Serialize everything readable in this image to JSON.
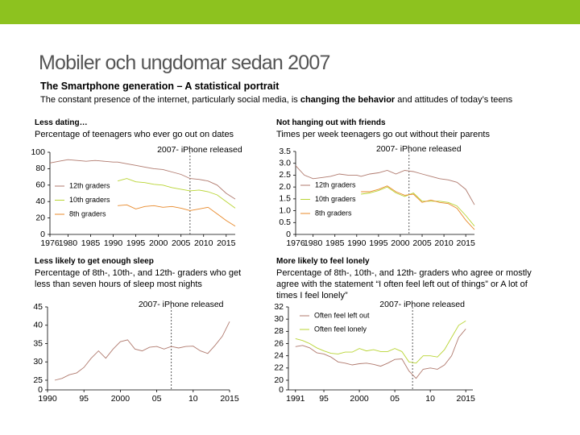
{
  "title": "Mobiler och ungdomar sedan 2007",
  "subtitle": "The Smartphone generation – A statistical portrait",
  "description": [
    "The constant presence of the internet, particularly social media, is ",
    "changing the behavior",
    " and attitudes of today’s teens"
  ],
  "chart_data": [
    {
      "type": "line",
      "title": "Less dating…",
      "subtitle": "Percentage of teenagers who ever go out on dates",
      "annotation": "2007- iPhone released",
      "annotation_x": 2007,
      "x": [
        1976,
        1978,
        1980,
        1982,
        1984,
        1986,
        1988,
        1990,
        1991,
        1993,
        1995,
        1997,
        1999,
        2001,
        2003,
        2005,
        2007,
        2009,
        2011,
        2013,
        2015,
        2017
      ],
      "xlim": [
        1976,
        2017
      ],
      "xticks": [
        1976,
        1980,
        1985,
        1990,
        1995,
        2000,
        2005,
        2010,
        2015
      ],
      "ylim": [
        0,
        100
      ],
      "yticks": [
        0,
        20,
        40,
        60,
        80,
        100
      ],
      "legend": "left",
      "series": [
        {
          "name": "12th graders",
          "color": "#b07a6e",
          "values": [
            87,
            89,
            91,
            90,
            89,
            90,
            89,
            88,
            88,
            86,
            84,
            82,
            80,
            79,
            76,
            73,
            68,
            67,
            65,
            60,
            50,
            43
          ]
        },
        {
          "name": "10th graders",
          "color": "#b8d432",
          "values": [
            null,
            null,
            null,
            null,
            null,
            null,
            null,
            null,
            65,
            68,
            64,
            63,
            61,
            60,
            57,
            55,
            53,
            54,
            52,
            48,
            40,
            32
          ]
        },
        {
          "name": "8th graders",
          "color": "#e8892a",
          "values": [
            null,
            null,
            null,
            null,
            null,
            null,
            null,
            null,
            35,
            36,
            31,
            34,
            35,
            33,
            34,
            32,
            29,
            31,
            33,
            25,
            17,
            10
          ]
        }
      ]
    },
    {
      "type": "line",
      "title": "Not hanging out with friends",
      "subtitle": "Times per week teenagers go out without their parents",
      "annotation": "2007- iPhone released",
      "annotation_x": 2002,
      "x": [
        1976,
        1978,
        1980,
        1982,
        1984,
        1986,
        1988,
        1990,
        1991,
        1993,
        1995,
        1997,
        1999,
        2001,
        2003,
        2005,
        2007,
        2009,
        2011,
        2013,
        2015,
        2017
      ],
      "xlim": [
        1976,
        2017
      ],
      "xticks": [
        1976,
        1980,
        1985,
        1990,
        1995,
        2000,
        2005,
        2010,
        2015
      ],
      "ylim": [
        0,
        3.5
      ],
      "yticks": [
        0,
        0.5,
        {
          "value": 1,
          "label": "1.0"
        },
        1.5,
        {
          "value": 2,
          "label": "2.0"
        },
        2.5,
        {
          "value": 3,
          "label": "3.0"
        },
        3.5
      ],
      "legend": "left",
      "series": [
        {
          "name": "12th graders",
          "color": "#b07a6e",
          "values": [
            2.9,
            2.5,
            2.35,
            2.4,
            2.45,
            2.55,
            2.5,
            2.5,
            2.45,
            2.55,
            2.6,
            2.7,
            2.55,
            2.7,
            2.65,
            2.55,
            2.45,
            2.35,
            2.3,
            2.2,
            1.9,
            1.25
          ]
        },
        {
          "name": "10th graders",
          "color": "#b8d432",
          "values": [
            null,
            null,
            null,
            null,
            null,
            null,
            null,
            null,
            1.7,
            1.75,
            1.85,
            2.0,
            1.75,
            1.6,
            1.75,
            1.4,
            1.4,
            1.4,
            1.35,
            1.2,
            0.8,
            0.35
          ]
        },
        {
          "name": "8th graders",
          "color": "#e8892a",
          "values": [
            null,
            null,
            null,
            null,
            null,
            null,
            null,
            null,
            1.8,
            1.8,
            1.9,
            2.05,
            1.8,
            1.65,
            1.7,
            1.35,
            1.45,
            1.35,
            1.3,
            1.1,
            0.6,
            0.2
          ]
        }
      ]
    },
    {
      "type": "line",
      "title": "Less likely to get enough sleep",
      "subtitle": "Percentage of 8th-, 10th-, and 12th- graders who get less than seven hours of sleep most nights",
      "annotation": "2007- iPhone released",
      "annotation_x": 2007,
      "x": [
        1991,
        1992,
        1993,
        1994,
        1995,
        1996,
        1997,
        1998,
        1999,
        2000,
        2001,
        2002,
        2003,
        2004,
        2005,
        2006,
        2007,
        2008,
        2009,
        2010,
        2011,
        2012,
        2013,
        2014,
        2015
      ],
      "xlim": [
        1990,
        2015
      ],
      "xticks": [
        1990,
        {
          "value": 1995,
          "label": "95"
        },
        2000,
        {
          "value": 2005,
          "label": "05"
        },
        {
          "value": 2010,
          "label": "10"
        },
        2015
      ],
      "ylim": [
        0,
        45
      ],
      "yticks": [
        0,
        25,
        30,
        35,
        40,
        45
      ],
      "axis_break": true,
      "series": [
        {
          "color": "#b07a6e",
          "values": [
            25,
            25.5,
            26.5,
            27,
            28.5,
            31,
            33,
            31,
            33.5,
            35.5,
            36,
            33.5,
            33,
            34,
            34.2,
            33.5,
            34.2,
            33.8,
            34.2,
            34.3,
            33,
            32.3,
            34.5,
            37,
            41
          ]
        }
      ]
    },
    {
      "type": "line",
      "title": "More likely to feel lonely",
      "subtitle": "Percentage of 8th-, 10th-, and 12th- graders who agree or mostly agree with the statement “I often feel left out of things” or A lot of times I feel lonely”",
      "annotation": "2007- iPhone released",
      "annotation_x": 2007.5,
      "x": [
        1991,
        1992,
        1993,
        1994,
        1995,
        1996,
        1997,
        1998,
        1999,
        2000,
        2001,
        2002,
        2003,
        2004,
        2005,
        2006,
        2007,
        2008,
        2009,
        2010,
        2011,
        2012,
        2013,
        2014,
        2015
      ],
      "xlim": [
        1990,
        2016
      ],
      "xticks": [
        1991,
        {
          "value": 1995,
          "label": "95"
        },
        2000,
        {
          "value": 2005,
          "label": "05"
        },
        {
          "value": 2010,
          "label": "10"
        },
        2015
      ],
      "ylim": [
        0,
        32
      ],
      "yticks": [
        0,
        20,
        22,
        24,
        26,
        28,
        30,
        32
      ],
      "axis_break": true,
      "legend": "upper left",
      "series": [
        {
          "name": "Often feel left out",
          "color": "#b07a6e",
          "values": [
            25.5,
            25.7,
            25.3,
            24.5,
            24.3,
            23.8,
            23,
            22.8,
            22.5,
            22.7,
            22.8,
            22.6,
            22.3,
            22.8,
            23.4,
            23.5,
            21.5,
            20.3,
            21.8,
            22,
            21.8,
            22.5,
            24,
            27,
            28.4
          ]
        },
        {
          "name": "Often feel lonely",
          "color": "#b8d432",
          "values": [
            26.8,
            26.5,
            26,
            25.3,
            24.8,
            24.4,
            24.3,
            24.6,
            24.6,
            25.2,
            24.8,
            25,
            24.7,
            24.7,
            25.2,
            24.7,
            23,
            22.8,
            24,
            24,
            23.8,
            25,
            27,
            29,
            29.7
          ]
        }
      ]
    }
  ]
}
